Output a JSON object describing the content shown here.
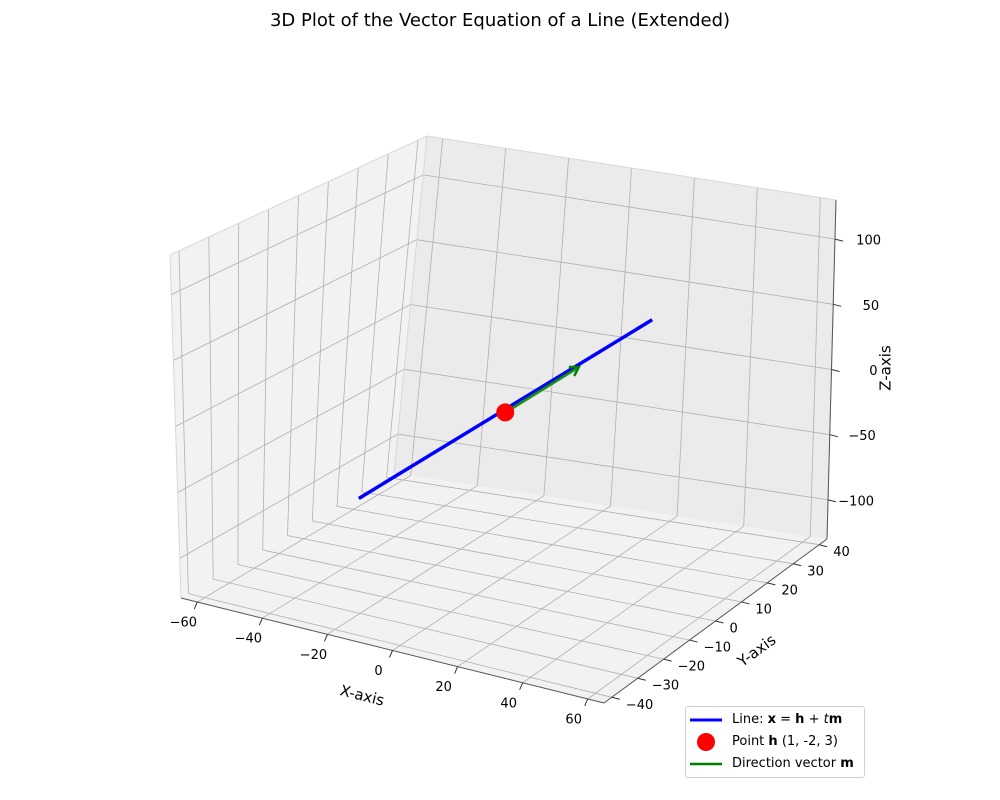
{
  "chart_data": {
    "type": "line3d",
    "title": "3D Plot of the Vector Equation of a Line (Extended)",
    "xlabel": "X-axis",
    "ylabel": "Y-axis",
    "zlabel": "Z-axis",
    "xlim": [
      -65,
      65
    ],
    "ylim": [
      -43,
      43
    ],
    "zlim": [
      -130,
      130
    ],
    "xticks": [
      -60,
      -40,
      -20,
      0,
      20,
      40,
      60
    ],
    "yticks": [
      -40,
      -30,
      -20,
      -10,
      0,
      10,
      20,
      30,
      40
    ],
    "zticks": [
      -100,
      -50,
      0,
      50,
      100
    ],
    "grid": true,
    "legend_position": "bottom-right",
    "point_h": [
      1,
      -2,
      3
    ],
    "direction_m": [
      2,
      3,
      4
    ],
    "t_range": [
      -10,
      10
    ],
    "series": [
      {
        "name": "Line: x = h + tm",
        "kind": "line",
        "color": "#0000ff",
        "x": [
          -19,
          21
        ],
        "y": [
          -32,
          28
        ],
        "z": [
          -37,
          43
        ]
      },
      {
        "name": "Point h (1, -2, 3)",
        "kind": "point",
        "color": "#ff0000",
        "x": [
          1
        ],
        "y": [
          -2
        ],
        "z": [
          3
        ]
      },
      {
        "name": "Direction vector m",
        "kind": "vector",
        "color": "#008000",
        "x": [
          1,
          11
        ],
        "y": [
          -2,
          13
        ],
        "z": [
          3,
          23
        ]
      }
    ]
  },
  "legend": {
    "line_prefix": "Line: ",
    "line_bold_x": "x",
    "line_eq": " = ",
    "line_bold_h": "h",
    "line_plus": " + ",
    "line_t": "t",
    "line_bold_m": "m",
    "point_prefix": "Point ",
    "point_bold_h": "h",
    "point_suffix": " (1, -2, 3)",
    "vector_prefix": "Direction vector ",
    "vector_bold_m": "m"
  }
}
